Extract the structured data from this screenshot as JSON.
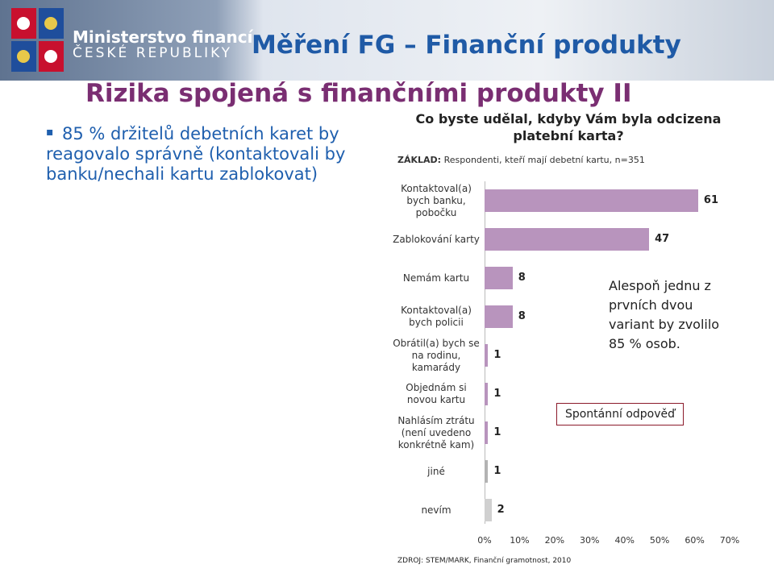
{
  "header": {
    "ministry": "Ministerstvo financí",
    "country": "ČESKÉ REPUBLIKY",
    "title": "Měření FG – Finanční produkty"
  },
  "subtitle": "Rizika spojená s finančními produkty II",
  "bullet": "85 % držitelů debetních karet by reagovalo správně (kontaktovali by banku/nechali kartu zablokovat)",
  "chart_data": {
    "type": "hbar",
    "title": "Co byste udělal, kdyby Vám byla odcizena platební karta?",
    "base_label": "ZÁKLAD:",
    "base_text": "Respondenti, kteří mají debetní kartu, n=351",
    "categories": [
      "Kontaktoval(a) bych banku, pobočku",
      "Zablokování karty",
      "Nemám kartu",
      "Kontaktoval(a) bych policii",
      "Obrátil(a) bych se na rodinu, kamarády",
      "Objednám si novou kartu",
      "Nahlásím ztrátu (není uvedeno konkrétně kam)",
      "jiné",
      "nevím"
    ],
    "values": [
      61,
      47,
      8,
      8,
      1,
      1,
      1,
      1,
      2
    ],
    "colors": [
      "#b894bd",
      "#b894bd",
      "#b894bd",
      "#b894bd",
      "#b894bd",
      "#b894bd",
      "#b894bd",
      "#b3b3b3",
      "#d0d0d0"
    ],
    "xlim": [
      0,
      70
    ],
    "xticks": [
      {
        "value": 0,
        "label": "0%"
      },
      {
        "value": 10,
        "label": "10%"
      },
      {
        "value": 20,
        "label": "20%"
      },
      {
        "value": 30,
        "label": "30%"
      },
      {
        "value": 40,
        "label": "40%"
      },
      {
        "value": 50,
        "label": "50%"
      },
      {
        "value": 60,
        "label": "60%"
      },
      {
        "value": 70,
        "label": "70%"
      }
    ],
    "annotations": [
      "Alespoň jednu z prvních dvou variant by zvolilo 85 % osob.",
      "Spontánní odpověď"
    ],
    "source": "ZDROJ: STEM/MARK, Finanční gramotnost, 2010"
  }
}
